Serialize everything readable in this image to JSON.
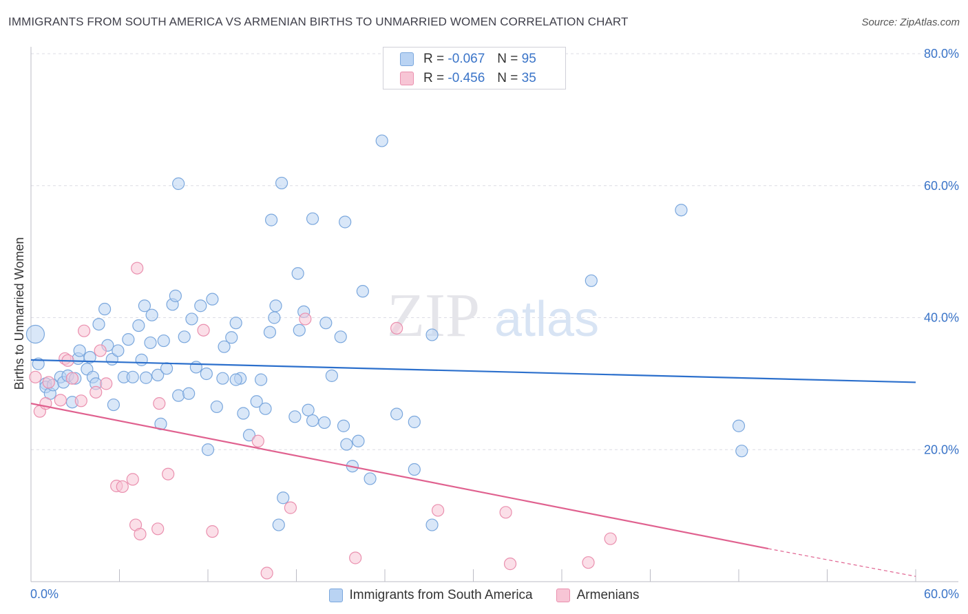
{
  "title": "IMMIGRANTS FROM SOUTH AMERICA VS ARMENIAN BIRTHS TO UNMARRIED WOMEN CORRELATION CHART",
  "source": "Source: ZipAtlas.com",
  "watermark": {
    "zip": "ZIP",
    "atlas": "atlas"
  },
  "legend_inset": {
    "rows": [
      {
        "r_label": "R =",
        "r_value": "-0.067",
        "n_label": "N =",
        "n_value": "95"
      },
      {
        "r_label": "R =",
        "r_value": "-0.456",
        "n_label": "N =",
        "n_value": "35"
      }
    ]
  },
  "colors": {
    "blue_fill": "#b9d3f3",
    "blue_stroke": "#7aa7dd",
    "blue_line": "#2b6fcc",
    "pink_fill": "#f7c5d5",
    "pink_stroke": "#ea8fae",
    "pink_line": "#e0618f",
    "grid": "#dcdce4",
    "tick_text": "#3a74c8"
  },
  "chart_data": {
    "type": "scatter",
    "title": "IMMIGRANTS FROM SOUTH AMERICA VS ARMENIAN BIRTHS TO UNMARRIED WOMEN CORRELATION CHART",
    "xlabel": "",
    "ylabel": "Births to Unmarried Women",
    "xlim": [
      0,
      60
    ],
    "ylim": [
      0,
      80
    ],
    "x_tick_labels": [
      "0.0%",
      "60.0%"
    ],
    "y_ticks": [
      20,
      40,
      60,
      80
    ],
    "y_tick_labels": [
      "20.0%",
      "40.0%",
      "60.0%",
      "80.0%"
    ],
    "grid": true,
    "legend_placement": "bottom",
    "series": [
      {
        "name": "Immigrants from South America",
        "r": -0.067,
        "n": 95,
        "trend": {
          "x": [
            0,
            60
          ],
          "y": [
            33.6,
            30.2
          ]
        },
        "points": [
          [
            0.3,
            37.5
          ],
          [
            0.5,
            33.0
          ],
          [
            1.0,
            30.0
          ],
          [
            1.0,
            29.5
          ],
          [
            1.3,
            28.5
          ],
          [
            1.5,
            29.8
          ],
          [
            2.0,
            31.0
          ],
          [
            2.2,
            30.2
          ],
          [
            2.5,
            31.2
          ],
          [
            2.8,
            27.2
          ],
          [
            3.0,
            30.8
          ],
          [
            3.2,
            33.8
          ],
          [
            3.3,
            35.0
          ],
          [
            3.8,
            32.2
          ],
          [
            4.0,
            34.0
          ],
          [
            4.2,
            31.0
          ],
          [
            4.4,
            30.0
          ],
          [
            4.6,
            39.0
          ],
          [
            5.0,
            41.3
          ],
          [
            5.2,
            35.8
          ],
          [
            5.5,
            33.7
          ],
          [
            5.6,
            26.8
          ],
          [
            5.9,
            35.0
          ],
          [
            6.3,
            31.0
          ],
          [
            6.6,
            36.7
          ],
          [
            6.9,
            31.0
          ],
          [
            7.3,
            38.8
          ],
          [
            7.5,
            33.6
          ],
          [
            7.7,
            41.8
          ],
          [
            8.1,
            36.2
          ],
          [
            8.2,
            40.4
          ],
          [
            8.6,
            31.3
          ],
          [
            8.8,
            23.9
          ],
          [
            9.0,
            36.5
          ],
          [
            9.2,
            32.3
          ],
          [
            9.6,
            42.0
          ],
          [
            9.8,
            43.3
          ],
          [
            10.0,
            28.2
          ],
          [
            10.4,
            37.1
          ],
          [
            10.7,
            28.5
          ],
          [
            10.9,
            39.8
          ],
          [
            11.2,
            32.5
          ],
          [
            11.5,
            41.8
          ],
          [
            11.9,
            31.5
          ],
          [
            12.0,
            20.0
          ],
          [
            12.3,
            42.8
          ],
          [
            12.6,
            26.5
          ],
          [
            13.0,
            30.8
          ],
          [
            13.1,
            35.6
          ],
          [
            13.6,
            37.0
          ],
          [
            13.9,
            39.2
          ],
          [
            14.2,
            30.8
          ],
          [
            14.4,
            25.5
          ],
          [
            14.8,
            22.2
          ],
          [
            15.3,
            27.3
          ],
          [
            15.6,
            30.6
          ],
          [
            15.9,
            26.2
          ],
          [
            16.2,
            37.8
          ],
          [
            16.5,
            40.0
          ],
          [
            16.6,
            41.8
          ],
          [
            17.1,
            12.7
          ],
          [
            17.9,
            25.0
          ],
          [
            18.1,
            46.7
          ],
          [
            18.2,
            38.1
          ],
          [
            18.5,
            40.9
          ],
          [
            18.8,
            26.0
          ],
          [
            19.1,
            24.4
          ],
          [
            20.0,
            39.2
          ],
          [
            20.4,
            31.2
          ],
          [
            21.0,
            37.1
          ],
          [
            21.2,
            23.6
          ],
          [
            21.4,
            20.8
          ],
          [
            21.8,
            17.5
          ],
          [
            22.2,
            21.3
          ],
          [
            22.5,
            44.0
          ],
          [
            23.0,
            15.6
          ],
          [
            23.8,
            66.8
          ],
          [
            24.8,
            25.4
          ],
          [
            26.0,
            17.0
          ],
          [
            26.0,
            24.2
          ],
          [
            27.2,
            37.4
          ],
          [
            27.2,
            8.6
          ],
          [
            17.0,
            60.4
          ],
          [
            19.1,
            55.0
          ],
          [
            21.3,
            54.5
          ],
          [
            10.0,
            60.3
          ],
          [
            16.3,
            54.8
          ],
          [
            16.8,
            8.6
          ],
          [
            38.0,
            45.6
          ],
          [
            44.1,
            56.3
          ],
          [
            48.0,
            23.6
          ],
          [
            48.2,
            19.8
          ],
          [
            19.9,
            24.1
          ],
          [
            13.9,
            30.6
          ],
          [
            7.8,
            30.9
          ]
        ]
      },
      {
        "name": "Armenians",
        "r": -0.456,
        "n": 35,
        "trend": {
          "x": [
            0,
            50
          ],
          "y": [
            27.0,
            5.0
          ]
        },
        "trend_dashed": {
          "x": [
            50,
            60
          ],
          "y": [
            5.0,
            0.8
          ]
        },
        "points": [
          [
            0.3,
            31.0
          ],
          [
            0.6,
            25.8
          ],
          [
            1.0,
            27.0
          ],
          [
            1.2,
            30.2
          ],
          [
            2.0,
            27.5
          ],
          [
            2.3,
            33.8
          ],
          [
            2.5,
            33.5
          ],
          [
            2.8,
            30.8
          ],
          [
            3.4,
            27.4
          ],
          [
            3.6,
            38.0
          ],
          [
            4.4,
            28.7
          ],
          [
            4.7,
            35.0
          ],
          [
            5.1,
            30.0
          ],
          [
            5.8,
            14.5
          ],
          [
            6.2,
            14.4
          ],
          [
            6.9,
            15.5
          ],
          [
            7.1,
            8.6
          ],
          [
            7.2,
            47.5
          ],
          [
            7.4,
            7.2
          ],
          [
            8.6,
            8.0
          ],
          [
            8.7,
            27.0
          ],
          [
            9.3,
            16.3
          ],
          [
            11.7,
            38.1
          ],
          [
            12.3,
            7.6
          ],
          [
            15.4,
            21.3
          ],
          [
            16.0,
            1.3
          ],
          [
            17.6,
            11.2
          ],
          [
            18.6,
            39.8
          ],
          [
            22.0,
            3.6
          ],
          [
            24.8,
            38.4
          ],
          [
            27.6,
            10.8
          ],
          [
            32.2,
            10.5
          ],
          [
            32.5,
            2.7
          ],
          [
            37.8,
            2.9
          ],
          [
            39.3,
            6.5
          ]
        ]
      }
    ]
  },
  "legend_bottom": [
    {
      "label": "Immigrants from South America"
    },
    {
      "label": "Armenians"
    }
  ]
}
